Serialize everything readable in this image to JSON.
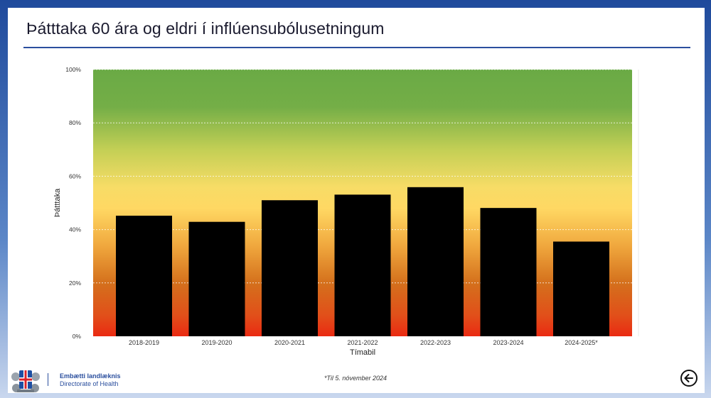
{
  "slide": {
    "title": "Þátttaka 60 ára og eldri í inflúensubólusetningum",
    "footnote": "*Til 5. nóvember 2024",
    "org_name_is": "Embætti landlæknis",
    "org_name_en": "Directorate of Health",
    "logo_icon": "coat-of-arms-icon",
    "back_icon": "arrow-left-circle-icon"
  },
  "chart_data": {
    "type": "bar",
    "title": "",
    "xlabel": "Tímabil",
    "ylabel": "Þátttaka",
    "categories": [
      "2018-2019",
      "2019-2020",
      "2020-2021",
      "2021-2022",
      "2022-2023",
      "2023-2024",
      "2024-2025*"
    ],
    "values": [
      45.2,
      42.9,
      51.0,
      53.1,
      55.9,
      48.1,
      35.5
    ],
    "ylim": [
      0,
      100
    ],
    "yticks": [
      0,
      20,
      40,
      60,
      80,
      100
    ],
    "ytick_labels": [
      "0%",
      "20%",
      "40%",
      "60%",
      "80%",
      "100%"
    ],
    "grid": true,
    "bar_color": "#000000",
    "background_gradient": [
      "#6aaa45",
      "#ffd966",
      "#e3351c"
    ],
    "legend": "none"
  }
}
